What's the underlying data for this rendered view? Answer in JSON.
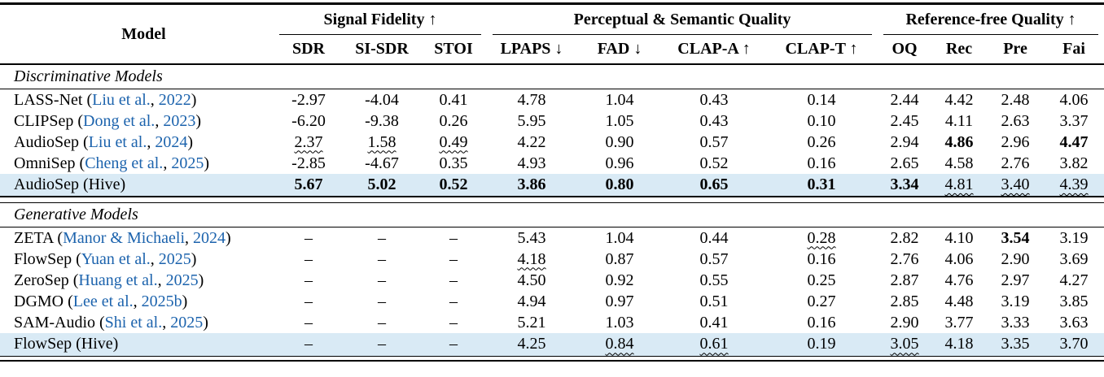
{
  "table": {
    "model_header": "Model",
    "groups": [
      {
        "label": "Signal Fidelity ↑",
        "cols": 3
      },
      {
        "label": "Perceptual & Semantic Quality",
        "cols": 4
      },
      {
        "label": "Reference-free Quality ↑",
        "cols": 4
      }
    ],
    "columns": [
      "SDR",
      "SI-SDR",
      "STOI",
      "LPAPS ↓",
      "FAD ↓",
      "CLAP-A ↑",
      "CLAP-T ↑",
      "OQ",
      "Rec",
      "Pre",
      "Fai"
    ],
    "sections": [
      {
        "title": "Discriminative Models",
        "rows": [
          {
            "model": {
              "name": "LASS-Net",
              "authors": "Liu et al.",
              "year": "2022"
            },
            "highlight": false,
            "cells": [
              {
                "v": "-2.97"
              },
              {
                "v": "-4.04"
              },
              {
                "v": "0.41"
              },
              {
                "v": "4.78"
              },
              {
                "v": "1.04"
              },
              {
                "v": "0.43"
              },
              {
                "v": "0.14"
              },
              {
                "v": "2.44"
              },
              {
                "v": "4.42"
              },
              {
                "v": "2.48"
              },
              {
                "v": "4.06"
              }
            ]
          },
          {
            "model": {
              "name": "CLIPSep",
              "authors": "Dong et al.",
              "year": "2023"
            },
            "highlight": false,
            "cells": [
              {
                "v": "-6.20"
              },
              {
                "v": "-9.38"
              },
              {
                "v": "0.26"
              },
              {
                "v": "5.95"
              },
              {
                "v": "1.05"
              },
              {
                "v": "0.43"
              },
              {
                "v": "0.10"
              },
              {
                "v": "2.45"
              },
              {
                "v": "4.11"
              },
              {
                "v": "2.63"
              },
              {
                "v": "3.37"
              }
            ]
          },
          {
            "model": {
              "name": "AudioSep",
              "authors": "Liu et al.",
              "year": "2024"
            },
            "highlight": false,
            "cells": [
              {
                "v": "2.37",
                "s": "w"
              },
              {
                "v": "1.58",
                "s": "w"
              },
              {
                "v": "0.49",
                "s": "w"
              },
              {
                "v": "4.22"
              },
              {
                "v": "0.90"
              },
              {
                "v": "0.57"
              },
              {
                "v": "0.26"
              },
              {
                "v": "2.94"
              },
              {
                "v": "4.86",
                "s": "b"
              },
              {
                "v": "2.96"
              },
              {
                "v": "4.47",
                "s": "b"
              }
            ]
          },
          {
            "model": {
              "name": "OmniSep",
              "authors": "Cheng et al.",
              "year": "2025"
            },
            "highlight": false,
            "cells": [
              {
                "v": "-2.85"
              },
              {
                "v": "-4.67"
              },
              {
                "v": "0.35"
              },
              {
                "v": "4.93"
              },
              {
                "v": "0.96"
              },
              {
                "v": "0.52"
              },
              {
                "v": "0.16"
              },
              {
                "v": "2.65"
              },
              {
                "v": "4.58"
              },
              {
                "v": "2.76"
              },
              {
                "v": "3.82"
              }
            ]
          },
          {
            "model": {
              "name": "AudioSep (Hive)",
              "authors": "",
              "year": ""
            },
            "highlight": true,
            "cells": [
              {
                "v": "5.67",
                "s": "b"
              },
              {
                "v": "5.02",
                "s": "b"
              },
              {
                "v": "0.52",
                "s": "b"
              },
              {
                "v": "3.86",
                "s": "b"
              },
              {
                "v": "0.80",
                "s": "b"
              },
              {
                "v": "0.65",
                "s": "b"
              },
              {
                "v": "0.31",
                "s": "b"
              },
              {
                "v": "3.34",
                "s": "b"
              },
              {
                "v": "4.81",
                "s": "w"
              },
              {
                "v": "3.40",
                "s": "w"
              },
              {
                "v": "4.39",
                "s": "w"
              }
            ]
          }
        ]
      },
      {
        "title": "Generative Models",
        "rows": [
          {
            "model": {
              "name": "ZETA",
              "authors": "Manor & Michaeli",
              "year": "2024"
            },
            "highlight": false,
            "cells": [
              {
                "v": "–"
              },
              {
                "v": "–"
              },
              {
                "v": "–"
              },
              {
                "v": "5.43"
              },
              {
                "v": "1.04"
              },
              {
                "v": "0.44"
              },
              {
                "v": "0.28",
                "s": "w"
              },
              {
                "v": "2.82"
              },
              {
                "v": "4.10"
              },
              {
                "v": "3.54",
                "s": "b"
              },
              {
                "v": "3.19"
              }
            ]
          },
          {
            "model": {
              "name": "FlowSep",
              "authors": "Yuan et al.",
              "year": "2025"
            },
            "highlight": false,
            "cells": [
              {
                "v": "–"
              },
              {
                "v": "–"
              },
              {
                "v": "–"
              },
              {
                "v": "4.18",
                "s": "w"
              },
              {
                "v": "0.87"
              },
              {
                "v": "0.57"
              },
              {
                "v": "0.16"
              },
              {
                "v": "2.76"
              },
              {
                "v": "4.06"
              },
              {
                "v": "2.90"
              },
              {
                "v": "3.69"
              }
            ]
          },
          {
            "model": {
              "name": "ZeroSep",
              "authors": "Huang et al.",
              "year": "2025"
            },
            "highlight": false,
            "cells": [
              {
                "v": "–"
              },
              {
                "v": "–"
              },
              {
                "v": "–"
              },
              {
                "v": "4.50"
              },
              {
                "v": "0.92"
              },
              {
                "v": "0.55"
              },
              {
                "v": "0.25"
              },
              {
                "v": "2.87"
              },
              {
                "v": "4.76"
              },
              {
                "v": "2.97"
              },
              {
                "v": "4.27"
              }
            ]
          },
          {
            "model": {
              "name": "DGMO",
              "authors": "Lee et al.",
              "year": "2025b"
            },
            "highlight": false,
            "cells": [
              {
                "v": "–"
              },
              {
                "v": "–"
              },
              {
                "v": "–"
              },
              {
                "v": "4.94"
              },
              {
                "v": "0.97"
              },
              {
                "v": "0.51"
              },
              {
                "v": "0.27"
              },
              {
                "v": "2.85"
              },
              {
                "v": "4.48"
              },
              {
                "v": "3.19"
              },
              {
                "v": "3.85"
              }
            ]
          },
          {
            "model": {
              "name": "SAM-Audio",
              "authors": "Shi et al.",
              "year": "2025"
            },
            "highlight": false,
            "cells": [
              {
                "v": "–"
              },
              {
                "v": "–"
              },
              {
                "v": "–"
              },
              {
                "v": "5.21"
              },
              {
                "v": "1.03"
              },
              {
                "v": "0.41"
              },
              {
                "v": "0.16"
              },
              {
                "v": "2.90"
              },
              {
                "v": "3.77"
              },
              {
                "v": "3.33"
              },
              {
                "v": "3.63"
              }
            ]
          },
          {
            "model": {
              "name": "FlowSep (Hive)",
              "authors": "",
              "year": ""
            },
            "highlight": true,
            "cells": [
              {
                "v": "–"
              },
              {
                "v": "–"
              },
              {
                "v": "–"
              },
              {
                "v": "4.25"
              },
              {
                "v": "0.84",
                "s": "w"
              },
              {
                "v": "0.61",
                "s": "w"
              },
              {
                "v": "0.19"
              },
              {
                "v": "3.05",
                "s": "w"
              },
              {
                "v": "4.18"
              },
              {
                "v": "3.35"
              },
              {
                "v": "3.70"
              }
            ]
          }
        ]
      }
    ]
  },
  "colors": {
    "highlight_row": "#d9eaf5",
    "citation_blue": "#1c63ad",
    "text": "#000000",
    "background": "#ffffff"
  }
}
